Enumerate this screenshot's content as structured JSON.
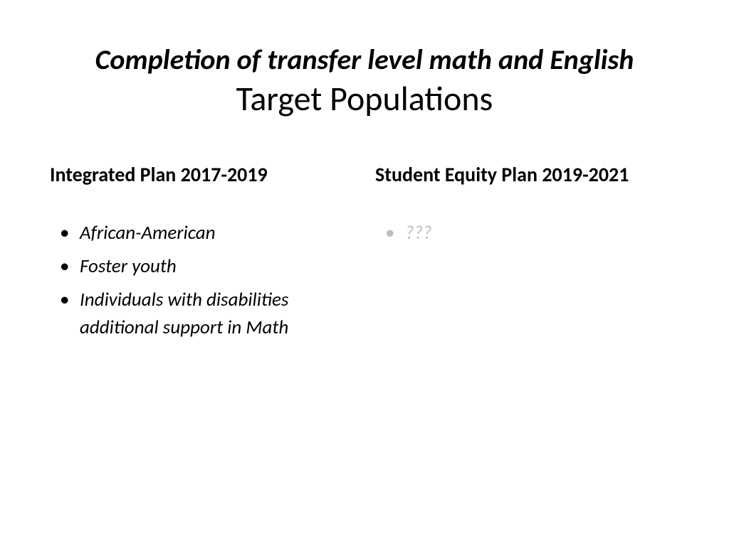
{
  "title": {
    "line1": "Completion of transfer level math and English",
    "line2": "Target Populations"
  },
  "left": {
    "heading": "Integrated Plan 2017-2019",
    "items": [
      "African-American",
      "Foster youth",
      "Individuals with disabilities additional support in Math"
    ]
  },
  "right": {
    "heading": "Student Equity  Plan 2019-2021",
    "items": [
      "???"
    ]
  },
  "colors": {
    "background": "#ffffff",
    "text": "#000000",
    "faded": "#bfbfbf"
  }
}
